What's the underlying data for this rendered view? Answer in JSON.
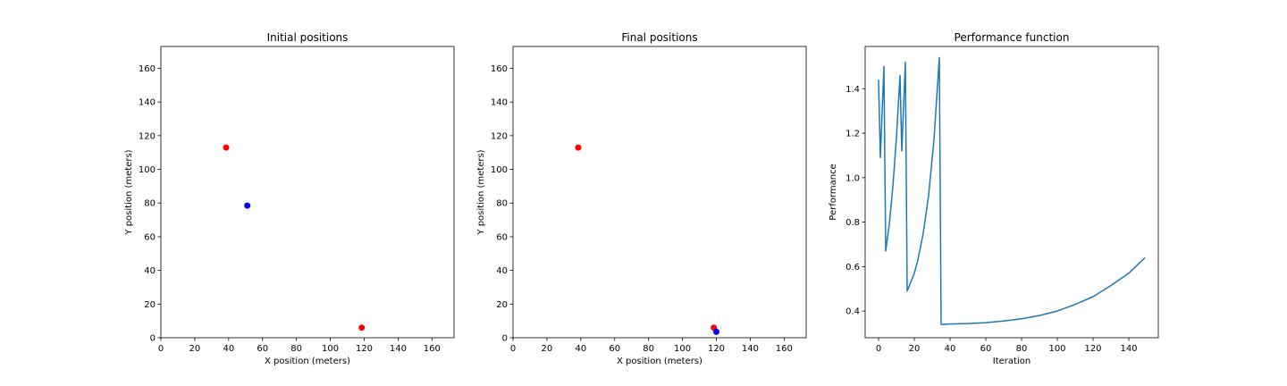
{
  "colors": {
    "red_point": "#ff0000",
    "blue_point": "#0000ff",
    "line": "#1f77b4",
    "frame": "#000000"
  },
  "chart_data": [
    {
      "type": "scatter",
      "title": "Initial positions",
      "xlabel": "X position (meters)",
      "ylabel": "Y position (meters)",
      "xlim": [
        0,
        173
      ],
      "ylim": [
        0,
        173
      ],
      "xticks": [
        0,
        20,
        40,
        60,
        80,
        100,
        120,
        140,
        160
      ],
      "yticks": [
        0,
        20,
        40,
        60,
        80,
        100,
        120,
        140,
        160
      ],
      "grid": false,
      "points": [
        {
          "x": 38.5,
          "y": 113,
          "color": "#ff0000"
        },
        {
          "x": 118.5,
          "y": 6,
          "color": "#ff0000"
        },
        {
          "x": 51,
          "y": 78.5,
          "color": "#0000ff"
        }
      ]
    },
    {
      "type": "scatter",
      "title": "Final positions",
      "xlabel": "X position (meters)",
      "ylabel": "Y position (meters)",
      "xlim": [
        0,
        173
      ],
      "ylim": [
        0,
        173
      ],
      "xticks": [
        0,
        20,
        40,
        60,
        80,
        100,
        120,
        140,
        160
      ],
      "yticks": [
        0,
        20,
        40,
        60,
        80,
        100,
        120,
        140,
        160
      ],
      "grid": false,
      "points": [
        {
          "x": 38.5,
          "y": 113,
          "color": "#ff0000"
        },
        {
          "x": 118.5,
          "y": 6,
          "color": "#ff0000"
        },
        {
          "x": 120,
          "y": 3.5,
          "color": "#0000ff"
        }
      ]
    },
    {
      "type": "line",
      "title": "Performance function",
      "xlabel": "Iteration",
      "ylabel": "Performance",
      "xlim": [
        -7.5,
        156.5
      ],
      "ylim": [
        0.28,
        1.59
      ],
      "xticks": [
        0,
        20,
        40,
        60,
        80,
        100,
        120,
        140
      ],
      "yticks": [
        0.4,
        0.6,
        0.8,
        1.0,
        1.2,
        1.4
      ],
      "ytick_labels": [
        "0.4",
        "0.6",
        "0.8",
        "1.0",
        "1.2",
        "1.4"
      ],
      "grid": false,
      "series": [
        {
          "x": [
            0,
            1,
            3,
            4,
            6,
            8,
            10,
            12,
            13,
            15,
            16,
            18,
            20,
            22,
            25,
            28,
            31,
            34,
            35,
            40,
            50,
            60,
            70,
            80,
            90,
            100,
            110,
            120,
            130,
            140,
            149
          ],
          "y": [
            1.44,
            1.09,
            1.5,
            0.67,
            0.79,
            0.96,
            1.18,
            1.46,
            1.12,
            1.52,
            0.49,
            0.53,
            0.57,
            0.63,
            0.75,
            0.92,
            1.17,
            1.54,
            0.34,
            0.342,
            0.344,
            0.348,
            0.355,
            0.365,
            0.38,
            0.4,
            0.43,
            0.465,
            0.515,
            0.57,
            0.64
          ]
        }
      ]
    }
  ]
}
